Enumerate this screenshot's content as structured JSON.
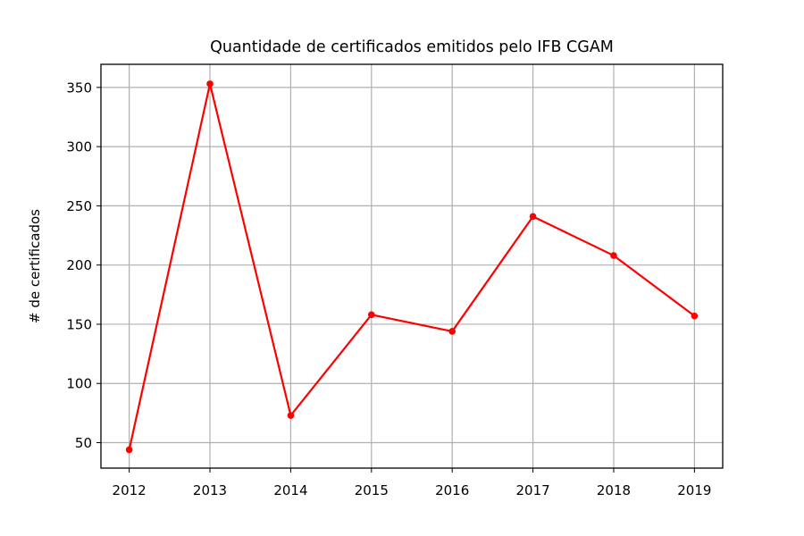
{
  "chart_data": {
    "type": "line",
    "title": "Quantidade de certificados emitidos pelo IFB CGAM",
    "xlabel": "",
    "ylabel": "# de certificados",
    "x": [
      2012,
      2013,
      2014,
      2015,
      2016,
      2017,
      2018,
      2019
    ],
    "series": [
      {
        "values": [
          44,
          353,
          73,
          158,
          144,
          241,
          208,
          157
        ],
        "color": "#ff0000",
        "marker": "circle"
      }
    ],
    "xlim": [
      2011.65,
      2019.35
    ],
    "ylim": [
      28.5,
      369.5
    ],
    "yticks": [
      50,
      100,
      150,
      200,
      250,
      300,
      350
    ],
    "xticks": [
      2012,
      2013,
      2014,
      2015,
      2016,
      2017,
      2018,
      2019
    ],
    "grid": true,
    "legend": "none"
  }
}
